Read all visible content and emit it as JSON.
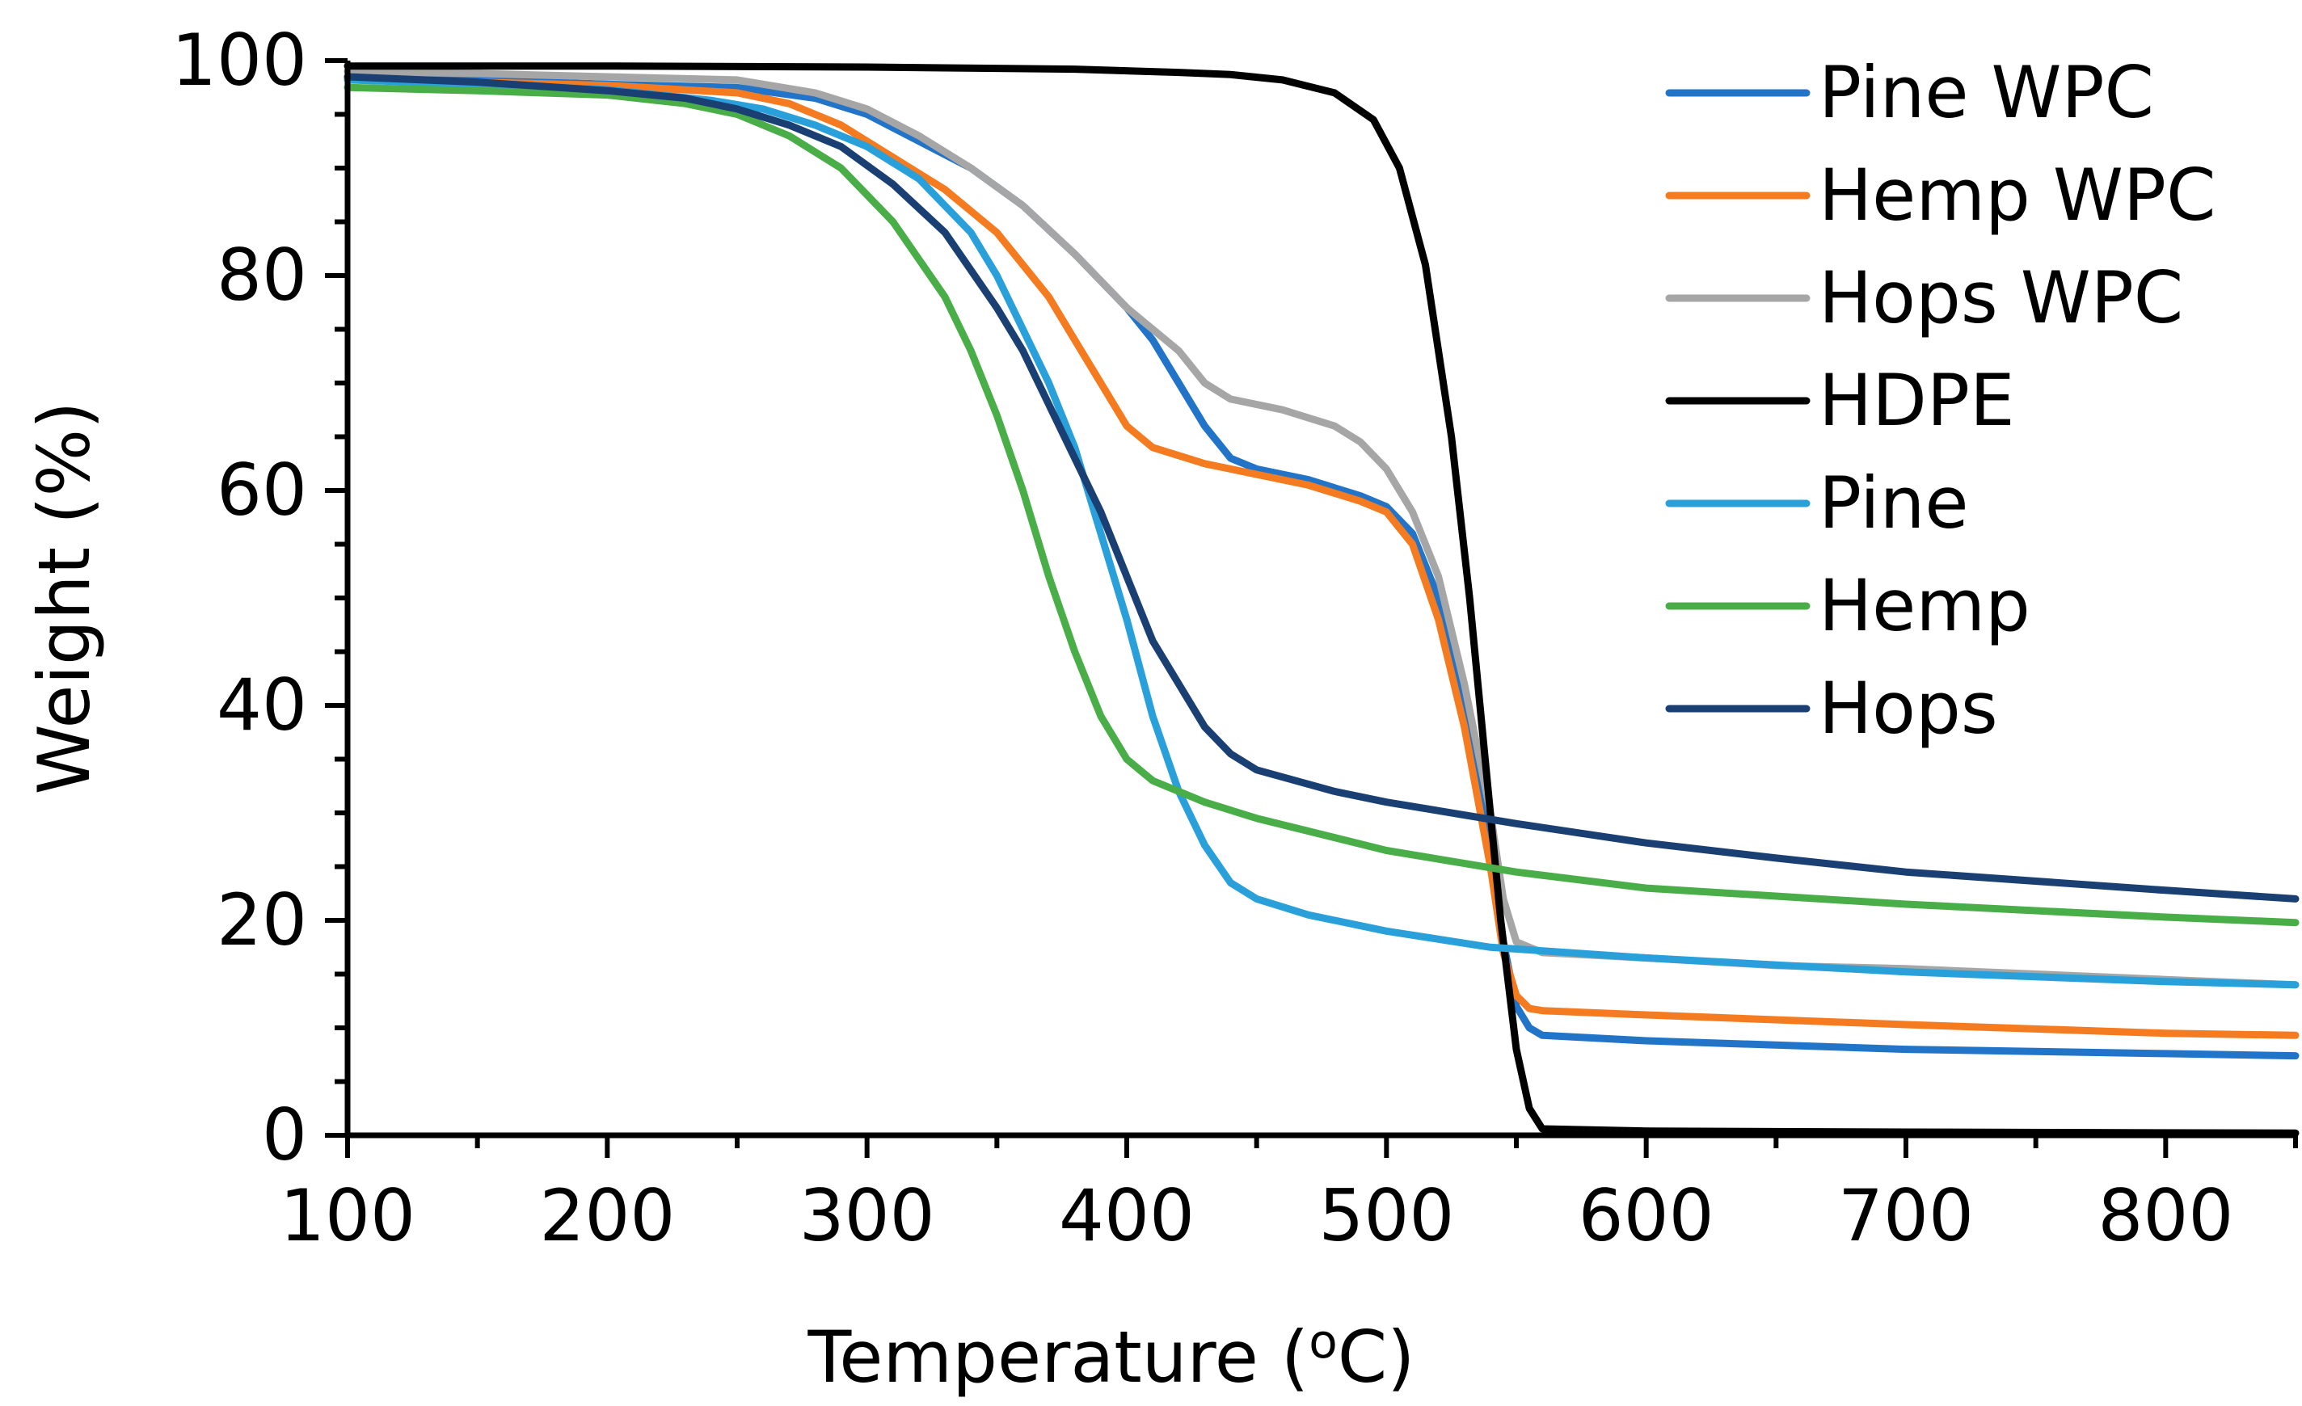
{
  "chart_data": {
    "type": "line",
    "title": "",
    "xlabel": "Temperature (",
    "xlabel_sup": "o",
    "xlabel_unit": "C)",
    "ylabel": "Weight (%)",
    "xlim": [
      100,
      850
    ],
    "ylim": [
      0,
      100
    ],
    "x_ticks": [
      100,
      200,
      300,
      400,
      500,
      600,
      700,
      800
    ],
    "y_ticks": [
      0,
      20,
      40,
      60,
      80,
      100
    ],
    "x_tick_labels": [
      "100",
      "200",
      "300",
      "400",
      "500",
      "600",
      "700",
      "800"
    ],
    "y_tick_labels": [
      "0",
      "20",
      "40",
      "60",
      "80",
      "100"
    ],
    "grid": false,
    "legend_position": "top-right",
    "series": [
      {
        "name": "Pine WPC",
        "color": "#2274C8",
        "points": [
          [
            100,
            98.5
          ],
          [
            150,
            98.2
          ],
          [
            200,
            97.8
          ],
          [
            250,
            97.5
          ],
          [
            280,
            96.5
          ],
          [
            300,
            95
          ],
          [
            320,
            92.5
          ],
          [
            340,
            90
          ],
          [
            360,
            86.5
          ],
          [
            380,
            82
          ],
          [
            400,
            77
          ],
          [
            410,
            74
          ],
          [
            420,
            70
          ],
          [
            430,
            66
          ],
          [
            440,
            63
          ],
          [
            450,
            62
          ],
          [
            470,
            61
          ],
          [
            490,
            59.5
          ],
          [
            500,
            58.5
          ],
          [
            510,
            56
          ],
          [
            520,
            50
          ],
          [
            530,
            40
          ],
          [
            540,
            26
          ],
          [
            545,
            18
          ],
          [
            550,
            12
          ],
          [
            555,
            10
          ],
          [
            560,
            9.3
          ],
          [
            600,
            8.8
          ],
          [
            700,
            8
          ],
          [
            800,
            7.6
          ],
          [
            850,
            7.4
          ]
        ]
      },
      {
        "name": "Hemp WPC",
        "color": "#F47B20",
        "points": [
          [
            100,
            98.3
          ],
          [
            150,
            98
          ],
          [
            200,
            97.7
          ],
          [
            250,
            97
          ],
          [
            270,
            96
          ],
          [
            290,
            94
          ],
          [
            310,
            91
          ],
          [
            330,
            88
          ],
          [
            350,
            84
          ],
          [
            370,
            78
          ],
          [
            380,
            74
          ],
          [
            390,
            70
          ],
          [
            400,
            66
          ],
          [
            410,
            64
          ],
          [
            430,
            62.5
          ],
          [
            450,
            61.5
          ],
          [
            470,
            60.5
          ],
          [
            490,
            59
          ],
          [
            500,
            58
          ],
          [
            510,
            55
          ],
          [
            520,
            48
          ],
          [
            530,
            38
          ],
          [
            540,
            25
          ],
          [
            545,
            17
          ],
          [
            550,
            13
          ],
          [
            555,
            11.8
          ],
          [
            560,
            11.6
          ],
          [
            600,
            11.2
          ],
          [
            700,
            10.3
          ],
          [
            800,
            9.5
          ],
          [
            850,
            9.3
          ]
        ]
      },
      {
        "name": "Hops WPC",
        "color": "#A6A6A6",
        "points": [
          [
            100,
            99
          ],
          [
            150,
            98.8
          ],
          [
            200,
            98.5
          ],
          [
            250,
            98.2
          ],
          [
            280,
            97
          ],
          [
            300,
            95.5
          ],
          [
            320,
            93
          ],
          [
            340,
            90
          ],
          [
            360,
            86.5
          ],
          [
            380,
            82
          ],
          [
            400,
            77
          ],
          [
            420,
            73
          ],
          [
            430,
            70
          ],
          [
            440,
            68.5
          ],
          [
            460,
            67.5
          ],
          [
            480,
            66
          ],
          [
            490,
            64.5
          ],
          [
            500,
            62
          ],
          [
            510,
            58
          ],
          [
            520,
            52
          ],
          [
            530,
            42
          ],
          [
            540,
            30
          ],
          [
            545,
            22
          ],
          [
            550,
            18
          ],
          [
            560,
            17
          ],
          [
            600,
            16.5
          ],
          [
            650,
            15.8
          ],
          [
            700,
            15.5
          ],
          [
            800,
            14.5
          ],
          [
            850,
            14
          ]
        ]
      },
      {
        "name": "HDPE",
        "color": "#000000",
        "points": [
          [
            100,
            99.5
          ],
          [
            200,
            99.5
          ],
          [
            300,
            99.4
          ],
          [
            380,
            99.2
          ],
          [
            420,
            98.9
          ],
          [
            440,
            98.7
          ],
          [
            460,
            98.2
          ],
          [
            480,
            97
          ],
          [
            495,
            94.5
          ],
          [
            505,
            90
          ],
          [
            515,
            81
          ],
          [
            525,
            65
          ],
          [
            532,
            50
          ],
          [
            538,
            35
          ],
          [
            544,
            20
          ],
          [
            550,
            8
          ],
          [
            555,
            2.5
          ],
          [
            560,
            0.6
          ],
          [
            600,
            0.4
          ],
          [
            700,
            0.3
          ],
          [
            850,
            0.2
          ]
        ]
      },
      {
        "name": "Pine",
        "color": "#29A0DA",
        "points": [
          [
            100,
            98.2
          ],
          [
            150,
            97.8
          ],
          [
            200,
            97.3
          ],
          [
            240,
            96.3
          ],
          [
            260,
            95.5
          ],
          [
            280,
            94
          ],
          [
            300,
            92
          ],
          [
            320,
            89
          ],
          [
            340,
            84
          ],
          [
            350,
            80
          ],
          [
            360,
            75
          ],
          [
            370,
            70
          ],
          [
            380,
            64
          ],
          [
            390,
            56
          ],
          [
            400,
            48
          ],
          [
            410,
            39
          ],
          [
            420,
            32
          ],
          [
            430,
            27
          ],
          [
            440,
            23.5
          ],
          [
            450,
            22
          ],
          [
            470,
            20.5
          ],
          [
            500,
            19
          ],
          [
            540,
            17.5
          ],
          [
            600,
            16.5
          ],
          [
            700,
            15.2
          ],
          [
            800,
            14.3
          ],
          [
            850,
            14
          ]
        ]
      },
      {
        "name": "Hemp",
        "color": "#4AAE48",
        "points": [
          [
            100,
            97.5
          ],
          [
            150,
            97.2
          ],
          [
            200,
            96.8
          ],
          [
            230,
            96
          ],
          [
            250,
            95
          ],
          [
            270,
            93
          ],
          [
            290,
            90
          ],
          [
            310,
            85
          ],
          [
            330,
            78
          ],
          [
            340,
            73
          ],
          [
            350,
            67
          ],
          [
            360,
            60
          ],
          [
            370,
            52
          ],
          [
            380,
            45
          ],
          [
            390,
            39
          ],
          [
            400,
            35
          ],
          [
            410,
            33
          ],
          [
            430,
            31
          ],
          [
            450,
            29.5
          ],
          [
            500,
            26.5
          ],
          [
            550,
            24.5
          ],
          [
            600,
            23
          ],
          [
            700,
            21.5
          ],
          [
            800,
            20.3
          ],
          [
            850,
            19.8
          ]
        ]
      },
      {
        "name": "Hops",
        "color": "#1A3F73",
        "points": [
          [
            100,
            98.5
          ],
          [
            150,
            98
          ],
          [
            200,
            97.2
          ],
          [
            230,
            96.5
          ],
          [
            250,
            95.5
          ],
          [
            270,
            94
          ],
          [
            290,
            92
          ],
          [
            310,
            88.5
          ],
          [
            330,
            84
          ],
          [
            350,
            77
          ],
          [
            360,
            73
          ],
          [
            370,
            68
          ],
          [
            380,
            63
          ],
          [
            390,
            58
          ],
          [
            400,
            52
          ],
          [
            410,
            46
          ],
          [
            420,
            42
          ],
          [
            430,
            38
          ],
          [
            440,
            35.5
          ],
          [
            450,
            34
          ],
          [
            480,
            32
          ],
          [
            500,
            31
          ],
          [
            550,
            29
          ],
          [
            600,
            27.2
          ],
          [
            650,
            25.8
          ],
          [
            700,
            24.5
          ],
          [
            800,
            22.8
          ],
          [
            850,
            22
          ]
        ]
      }
    ]
  }
}
